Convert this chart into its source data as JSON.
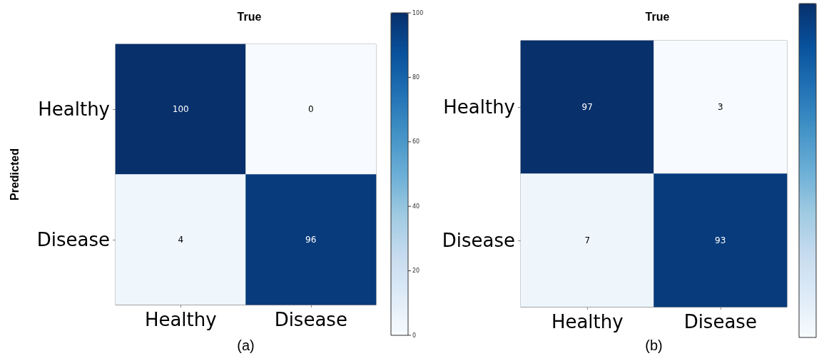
{
  "chart_data": [
    {
      "type": "heatmap",
      "title": "True",
      "ylabel": "Predicted",
      "categories": [
        "Healthy",
        "Disease"
      ],
      "y_categories": [
        "Healthy",
        "Disease"
      ],
      "cells": [
        [
          100,
          0
        ],
        [
          4,
          96
        ]
      ],
      "clim": [
        0,
        100
      ],
      "cticks": [
        0,
        20,
        40,
        60,
        80,
        100
      ],
      "data_labels": true,
      "annotations": [
        "(a)"
      ]
    },
    {
      "type": "heatmap",
      "title": "True",
      "categories": [
        "Healthy",
        "Disease"
      ],
      "y_categories": [
        "Healthy",
        "Disease"
      ],
      "cells": [
        [
          97,
          3
        ],
        [
          7,
          93
        ]
      ],
      "data_labels": true,
      "annotations": [
        "(b)"
      ]
    }
  ]
}
